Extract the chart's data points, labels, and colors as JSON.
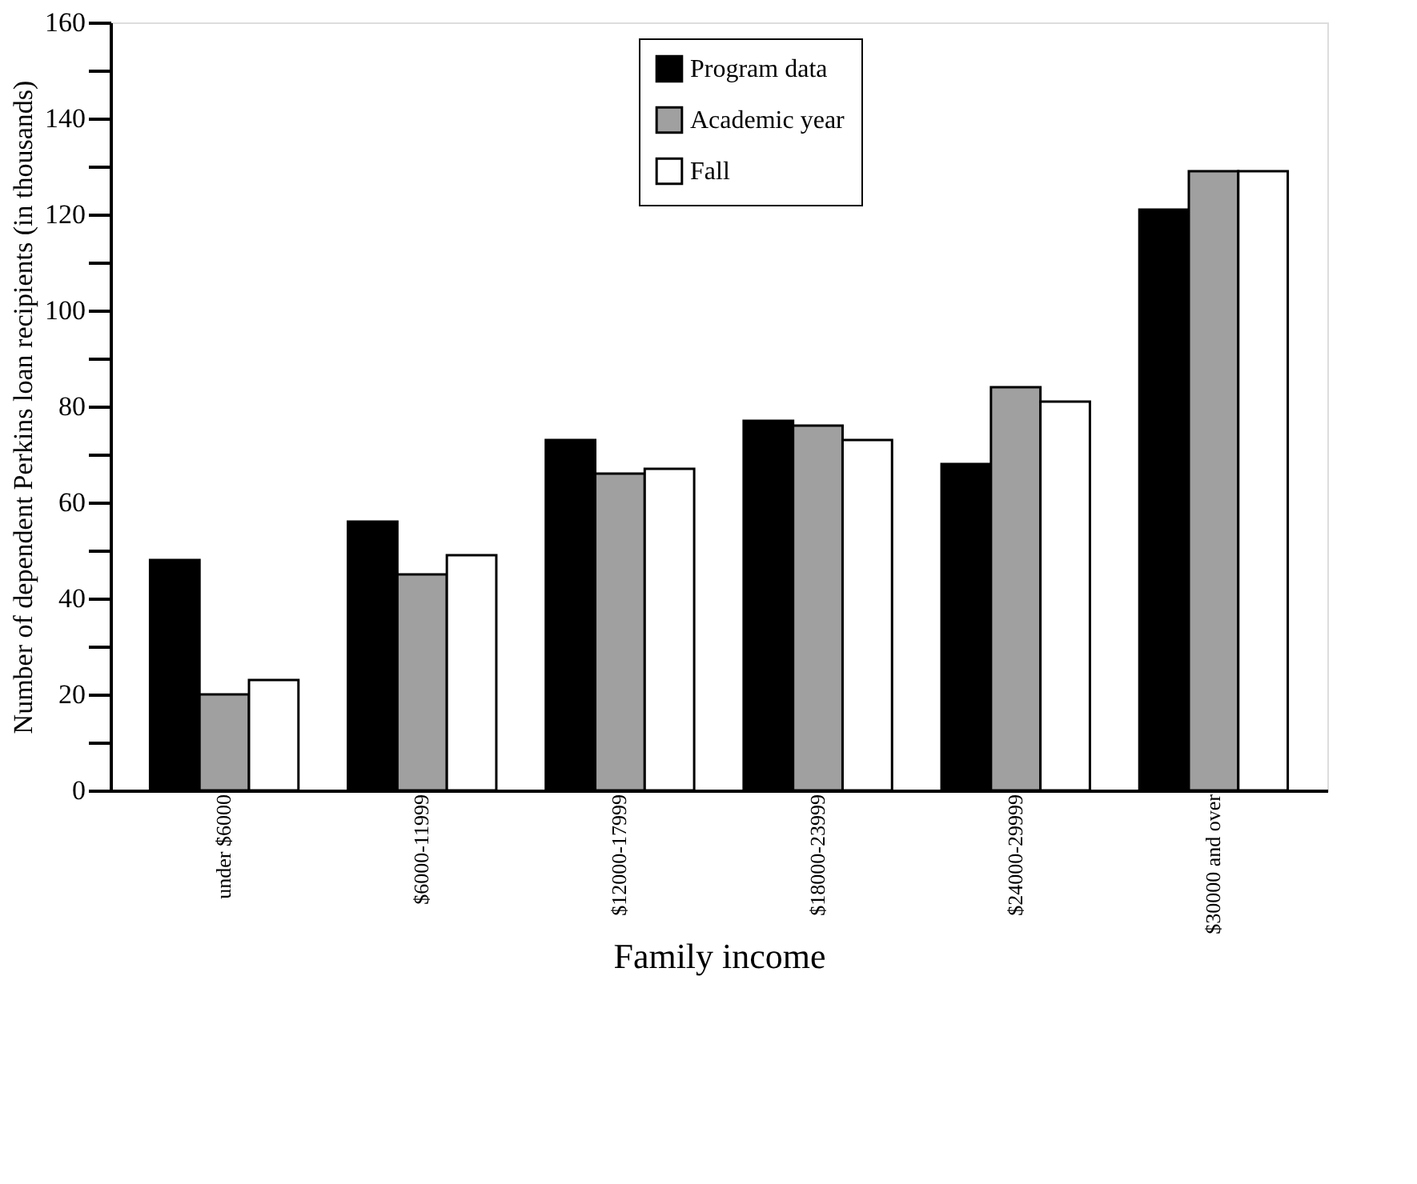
{
  "chart_data": {
    "type": "bar",
    "xlabel": "Family income",
    "ylabel": "Number of dependent Perkins loan recipients (in thousands)",
    "categories": [
      "under $6000",
      "$6000-11999",
      "$12000-17999",
      "$18000-23999",
      "$24000-29999",
      "$30000 and over"
    ],
    "series": [
      {
        "name": "Program data",
        "color": "#000000",
        "values": [
          48,
          56,
          73,
          77,
          68,
          121
        ]
      },
      {
        "name": "Academic year",
        "color": "#a0a0a0",
        "values": [
          20,
          45,
          66,
          76,
          84,
          129
        ]
      },
      {
        "name": "Fall",
        "color": "#ffffff",
        "values": [
          23,
          49,
          67,
          73,
          81,
          129
        ]
      }
    ],
    "ylim": [
      0,
      160
    ],
    "yticks": [
      0,
      {
        "value": 10,
        "label": null
      },
      20,
      {
        "value": 30,
        "label": null
      },
      40,
      {
        "value": 50,
        "label": null
      },
      60,
      {
        "value": 70,
        "label": null
      },
      80,
      {
        "value": 90,
        "label": null
      },
      100,
      {
        "value": 110,
        "label": null
      },
      120,
      {
        "value": 130,
        "label": null
      },
      140,
      {
        "value": 150,
        "label": null
      },
      160
    ],
    "grid": false,
    "legend": "top right"
  }
}
